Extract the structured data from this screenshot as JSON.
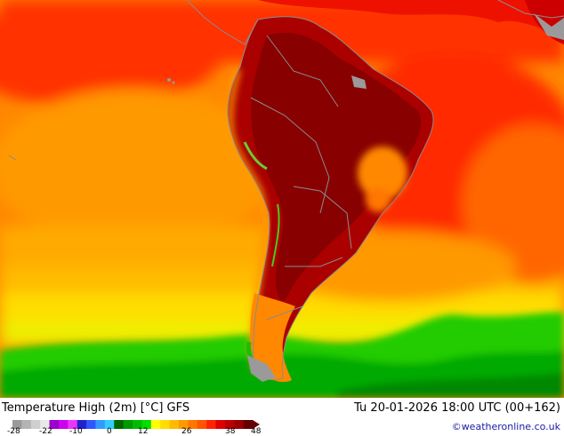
{
  "map": {
    "title": "Temperature High (2m) [°C] GFS",
    "valid_time": "Tu 20-01-2026 18:00 UTC (00+162)",
    "credit": "©weatheronline.co.uk",
    "legend": {
      "tick_labels": [
        "-28",
        "-22",
        "-10",
        "0",
        "12",
        "26",
        "38",
        "48"
      ],
      "colors": [
        "#9a9a9a",
        "#b4b4b4",
        "#cfcfcf",
        "#e8e8e8",
        "#9b00cc",
        "#cc00ee",
        "#ee33ff",
        "#2222cc",
        "#3355ff",
        "#3399ff",
        "#33ccff",
        "#006600",
        "#009900",
        "#00bb00",
        "#00dd00",
        "#ffff00",
        "#ffdd00",
        "#ffbb00",
        "#ff9900",
        "#ff7700",
        "#ff5500",
        "#ff2200",
        "#dd0000",
        "#bb0000",
        "#990000",
        "#660000"
      ]
    },
    "colors": {
      "ocean_warm": "#ff7700",
      "ocean_hot": "#ff2200",
      "land_extreme": "#bb0000",
      "cool_south": "#00cc00",
      "coast_lines": "#8c8c8c"
    }
  }
}
